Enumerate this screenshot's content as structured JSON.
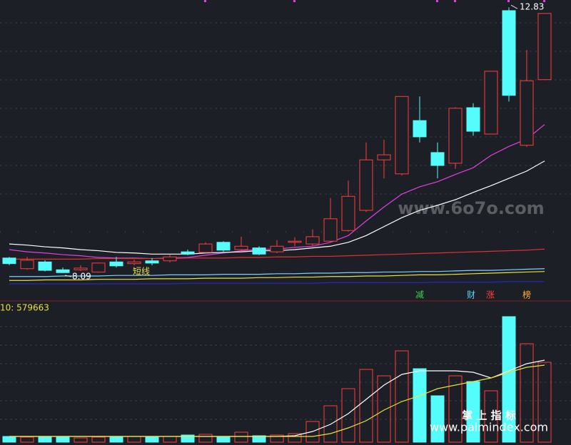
{
  "chart_data": [
    {
      "type": "candlestick",
      "up_color": "#ff3c3c",
      "down_color": "#54fcfc",
      "ylim": [
        7.62,
        12.96
      ],
      "open": [
        8.36,
        8.17,
        8.29,
        8.15,
        8.15,
        8.11,
        8.29,
        8.26,
        8.31,
        8.31,
        8.47,
        8.46,
        8.64,
        8.51,
        8.54,
        8.47,
        8.64,
        8.61,
        8.66,
        8.85,
        9.21,
        10.11,
        9.86,
        10.81,
        10.24,
        10.05,
        11.04,
        10.57,
        12.77,
        10.37,
        11.54
      ],
      "high": [
        8.38,
        8.38,
        8.32,
        8.19,
        8.23,
        8.28,
        8.38,
        8.33,
        8.36,
        8.42,
        8.51,
        8.64,
        8.66,
        8.74,
        8.57,
        8.68,
        8.73,
        8.87,
        9.43,
        9.74,
        10.42,
        10.47,
        11.24,
        11.24,
        10.42,
        11.05,
        11.12,
        11.69,
        12.83,
        12.07,
        12.72
      ],
      "low": [
        8.23,
        8.15,
        8.12,
        8.09,
        8.13,
        8.1,
        8.19,
        8.23,
        8.23,
        8.28,
        8.41,
        8.45,
        8.47,
        8.49,
        8.41,
        8.45,
        8.57,
        8.57,
        8.64,
        8.83,
        9.18,
        9.78,
        9.83,
        10.42,
        9.78,
        9.95,
        10.54,
        10.57,
        11.15,
        10.34,
        11.54
      ],
      "close": [
        8.26,
        8.32,
        8.14,
        8.1,
        8.18,
        8.27,
        8.22,
        8.29,
        8.27,
        8.38,
        8.43,
        8.61,
        8.5,
        8.57,
        8.43,
        8.57,
        8.66,
        8.74,
        9.06,
        9.46,
        10.11,
        10.2,
        11.24,
        10.52,
        10.01,
        11.03,
        10.62,
        11.69,
        11.26,
        11.52,
        12.72
      ],
      "series": [
        {
          "color": "#e040e0",
          "values": [
            8.51,
            8.47,
            8.45,
            8.42,
            8.4,
            8.37,
            8.36,
            8.36,
            8.35,
            8.36,
            8.37,
            8.41,
            8.45,
            8.49,
            8.51,
            8.52,
            8.55,
            8.57,
            8.64,
            8.76,
            9.02,
            9.27,
            9.5,
            9.63,
            9.72,
            9.85,
            9.97,
            10.19,
            10.35,
            10.48,
            10.74
          ]
        },
        {
          "color": "#ffffff",
          "values": [
            8.61,
            8.59,
            8.56,
            8.54,
            8.51,
            8.49,
            8.46,
            8.45,
            8.43,
            8.43,
            8.43,
            8.45,
            8.46,
            8.47,
            8.49,
            8.49,
            8.51,
            8.54,
            8.57,
            8.64,
            8.76,
            8.92,
            9.08,
            9.21,
            9.3,
            9.4,
            9.53,
            9.65,
            9.78,
            9.91,
            10.09
          ]
        },
        {
          "color": "#e03030",
          "values": [
            8.34,
            8.34,
            8.34,
            8.34,
            8.34,
            8.35,
            8.35,
            8.35,
            8.35,
            8.35,
            8.36,
            8.36,
            8.36,
            8.37,
            8.37,
            8.38,
            8.38,
            8.39,
            8.39,
            8.4,
            8.41,
            8.42,
            8.43,
            8.44,
            8.45,
            8.46,
            8.47,
            8.48,
            8.49,
            8.5,
            8.52
          ]
        },
        {
          "color": "#7fd0ff",
          "values": [
            8.03,
            8.03,
            8.03,
            8.04,
            8.04,
            8.04,
            8.05,
            8.05,
            8.05,
            8.06,
            8.06,
            8.06,
            8.07,
            8.07,
            8.07,
            8.08,
            8.08,
            8.09,
            8.09,
            8.1,
            8.1,
            8.11,
            8.11,
            8.12,
            8.12,
            8.13,
            8.14,
            8.14,
            8.15,
            8.16,
            8.17
          ]
        },
        {
          "color": "#e8e040",
          "values": [
            7.96,
            7.96,
            7.97,
            7.97,
            7.97,
            7.98,
            7.98,
            7.98,
            7.99,
            7.99,
            7.99,
            8.0,
            8.0,
            8.0,
            8.01,
            8.01,
            8.02,
            8.02,
            8.03,
            8.03,
            8.04,
            8.04,
            8.05,
            8.06,
            8.06,
            8.07,
            8.08,
            8.09,
            8.1,
            8.11,
            8.12
          ]
        },
        {
          "color": "#2828c0",
          "values": [
            7.9,
            7.9,
            7.9,
            7.9,
            7.9,
            7.9,
            7.9,
            7.9,
            7.9,
            7.9,
            7.91,
            7.91,
            7.91,
            7.91,
            7.91,
            7.91,
            7.91,
            7.91,
            7.92,
            7.92,
            7.92,
            7.92,
            7.92,
            7.92,
            7.93,
            7.93,
            7.93,
            7.93,
            7.94,
            7.94,
            7.94
          ]
        }
      ],
      "annotation": "短线",
      "markers": [
        {
          "label": "减",
          "color": "#3fd04f"
        },
        {
          "label": "财",
          "color": "#54d8fc"
        },
        {
          "label": "涨",
          "color": "#ff4040"
        },
        {
          "label": "榜",
          "color": "#ffb030"
        }
      ],
      "watermark": "www.6o7o.com"
    },
    {
      "type": "bar",
      "ylim": [
        0,
        1046600
      ],
      "label": "10: 579663",
      "values": [
        42900,
        37600,
        42900,
        42900,
        32200,
        37600,
        42900,
        42900,
        37600,
        42900,
        53700,
        59000,
        42900,
        75100,
        48300,
        53700,
        64400,
        155600,
        273700,
        402500,
        547400,
        499100,
        687000,
        552800,
        348900,
        499100,
        456200,
        386400,
        944600,
        740600,
        601100
      ],
      "series": [
        {
          "color": "#ffffff",
          "values": [
            42900,
            42900,
            42900,
            42900,
            42900,
            42900,
            42900,
            42900,
            42900,
            42900,
            42900,
            42900,
            42900,
            42900,
            42900,
            42900,
            48300,
            80500,
            134200,
            214700,
            322000,
            429400,
            509900,
            536700,
            536700,
            536700,
            526000,
            483000,
            536700,
            590400,
            617200
          ]
        },
        {
          "color": "#e8e040",
          "values": [
            42900,
            42900,
            42900,
            42900,
            42900,
            42900,
            42900,
            42900,
            42900,
            42900,
            42900,
            42900,
            42900,
            42900,
            42900,
            42900,
            42900,
            42900,
            64400,
            107300,
            161000,
            241500,
            305900,
            348900,
            402500,
            429400,
            456200,
            483000,
            526000,
            563500,
            579663
          ]
        }
      ]
    }
  ],
  "watermarks": [
    "掌 上 指 标",
    "www.palmindex.com"
  ]
}
